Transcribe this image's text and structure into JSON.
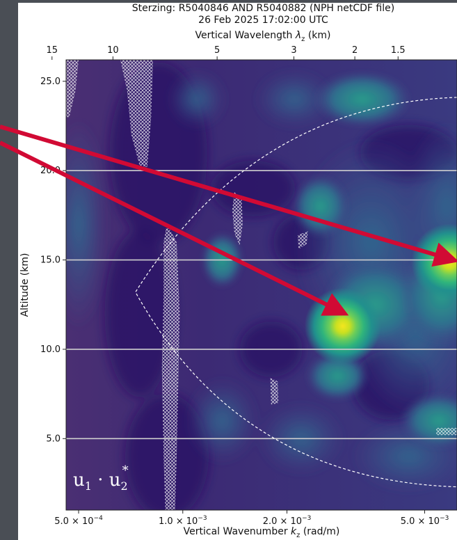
{
  "chart_data": {
    "type": "heatmap",
    "title_line1": "Sterzing: R5040846 AND R5040882 (NPH netCDF file)",
    "title_line2": "26 Feb 2025 17:02:00 UTC",
    "xlabel": "Vertical Wavenumber k_z (rad/m)",
    "xlabel_parts": {
      "pre": "Vertical Wavenumber ",
      "sym": "k",
      "sub": "z",
      "post": " (rad/m)"
    },
    "x_scale": "log",
    "xlim": [
      0.00046,
      0.0062
    ],
    "x_ticks": [
      {
        "value": 0.0005,
        "mant": "5.0",
        "exp": "−4"
      },
      {
        "value": 0.001,
        "mant": "1.0",
        "exp": "−3"
      },
      {
        "value": 0.002,
        "mant": "2.0",
        "exp": "−3"
      },
      {
        "value": 0.005,
        "mant": "5.0",
        "exp": "−3"
      }
    ],
    "top_xlabel": "Vertical Wavelength λ_z (km)",
    "top_xlabel_parts": {
      "pre": "Vertical Wavelength ",
      "sym": "λ",
      "sub": "z",
      "post": " (km)"
    },
    "top_ticks": [
      {
        "wavelength_km": 15,
        "label": "15"
      },
      {
        "wavelength_km": 10,
        "label": "10"
      },
      {
        "wavelength_km": 5,
        "label": "5"
      },
      {
        "wavelength_km": 3,
        "label": "3"
      },
      {
        "wavelength_km": 2,
        "label": "2"
      },
      {
        "wavelength_km": 1.5,
        "label": "1.5"
      }
    ],
    "ylabel": "Altitude (km)",
    "ylim": [
      1.0,
      26.2
    ],
    "y_ticks": [
      {
        "value": 5,
        "label": "5.0"
      },
      {
        "value": 10,
        "label": "10.0"
      },
      {
        "value": 15,
        "label": "15.0"
      },
      {
        "value": 20,
        "label": "20.0"
      },
      {
        "value": 25,
        "label": "25.0"
      }
    ],
    "horizontal_lines_km": [
      5,
      10,
      15,
      20
    ],
    "colormap": "viridis",
    "peaks": [
      {
        "k": 0.0029,
        "alt": 11.3,
        "intensity": 1.0
      },
      {
        "k": 0.0059,
        "alt": 14.9,
        "intensity": 1.0
      }
    ],
    "cone_of_influence": {
      "apex_k": 0.00073,
      "apex_alt": 13.2,
      "top_k": 0.0062,
      "top_alt": 24.1,
      "bottom_k": 0.0062,
      "bottom_alt": 2.3
    },
    "product_label": {
      "a": "u",
      "a_sub": "1",
      "op": " · ",
      "b": "u",
      "b_sub": "2",
      "b_sup": "*"
    },
    "arrows": [
      {
        "from": "outside-left",
        "to_k": 0.0028,
        "to_alt": 12.2
      },
      {
        "from": "outside-left",
        "to_k": 0.0058,
        "to_alt": 15.1
      }
    ],
    "colors": {
      "arrow": "#d10a34",
      "grid_line": "#cfcfcf",
      "frame_bg": "#4a4e55"
    }
  }
}
